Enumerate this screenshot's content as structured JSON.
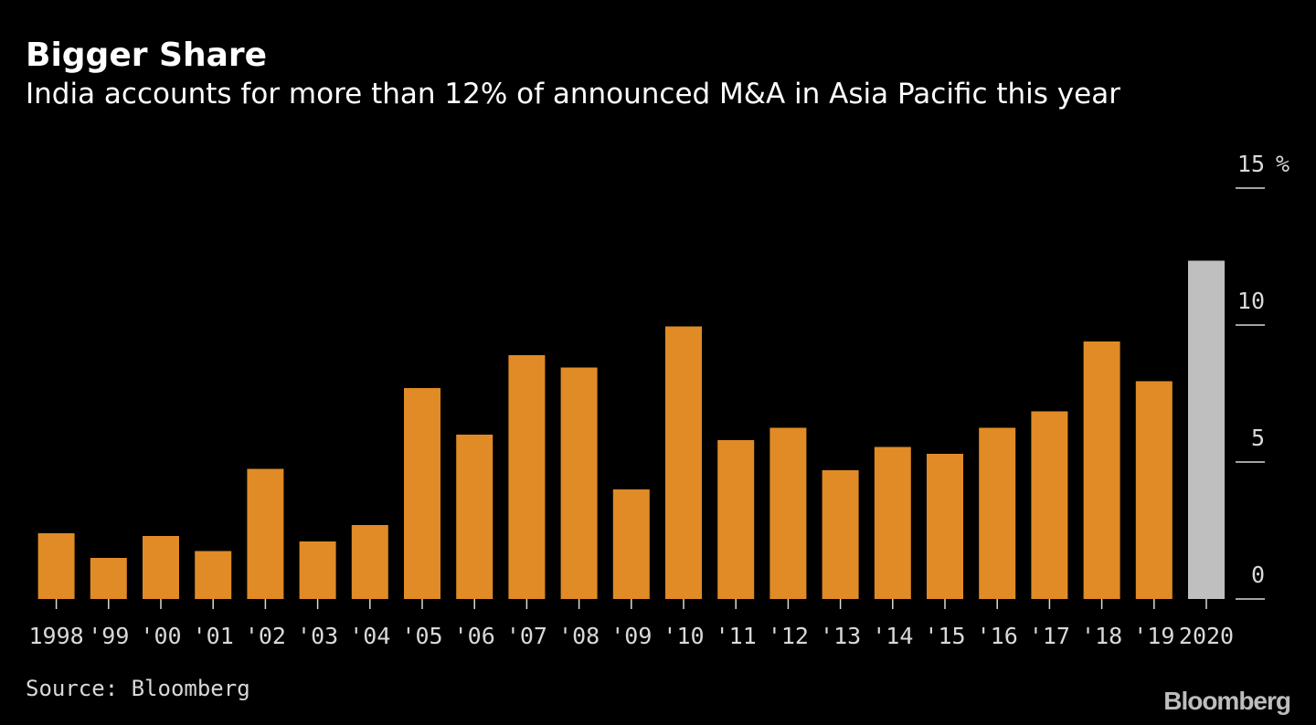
{
  "title": "Bigger Share",
  "subtitle": "India accounts for more than 12% of announced M&A in Asia Pacific this year",
  "source": "Source: Bloomberg",
  "logo": "Bloomberg",
  "colors": {
    "background": "#000000",
    "bar": "#E08B26",
    "highlight_bar": "#BFBFBF",
    "text": "#FFFFFF",
    "axis": "#D9D9D9"
  },
  "chart_data": {
    "type": "bar",
    "title": "Bigger Share",
    "subtitle": "India accounts for more than 12% of announced M&A in Asia Pacific this year",
    "xlabel": "",
    "ylabel": "",
    "categories": [
      "1998",
      "'99",
      "'00",
      "'01",
      "'02",
      "'03",
      "'04",
      "'05",
      "'06",
      "'07",
      "'08",
      "'09",
      "'10",
      "'11",
      "'12",
      "'13",
      "'14",
      "'15",
      "'16",
      "'17",
      "'18",
      "'19",
      "2020"
    ],
    "values": [
      2.4,
      1.5,
      2.3,
      1.75,
      4.75,
      2.1,
      2.7,
      7.7,
      6.0,
      8.9,
      8.45,
      4.0,
      9.95,
      5.8,
      6.25,
      4.7,
      5.55,
      5.3,
      6.25,
      6.85,
      9.4,
      7.95,
      12.35
    ],
    "highlight_index": 22,
    "ylim": [
      0,
      15
    ],
    "yticks": [
      0,
      5,
      10,
      15
    ],
    "ytick_labels": [
      "0",
      "5",
      "10",
      "15"
    ],
    "yunit": "%",
    "y_axis_position": "right",
    "grid": false,
    "legend": "none"
  }
}
